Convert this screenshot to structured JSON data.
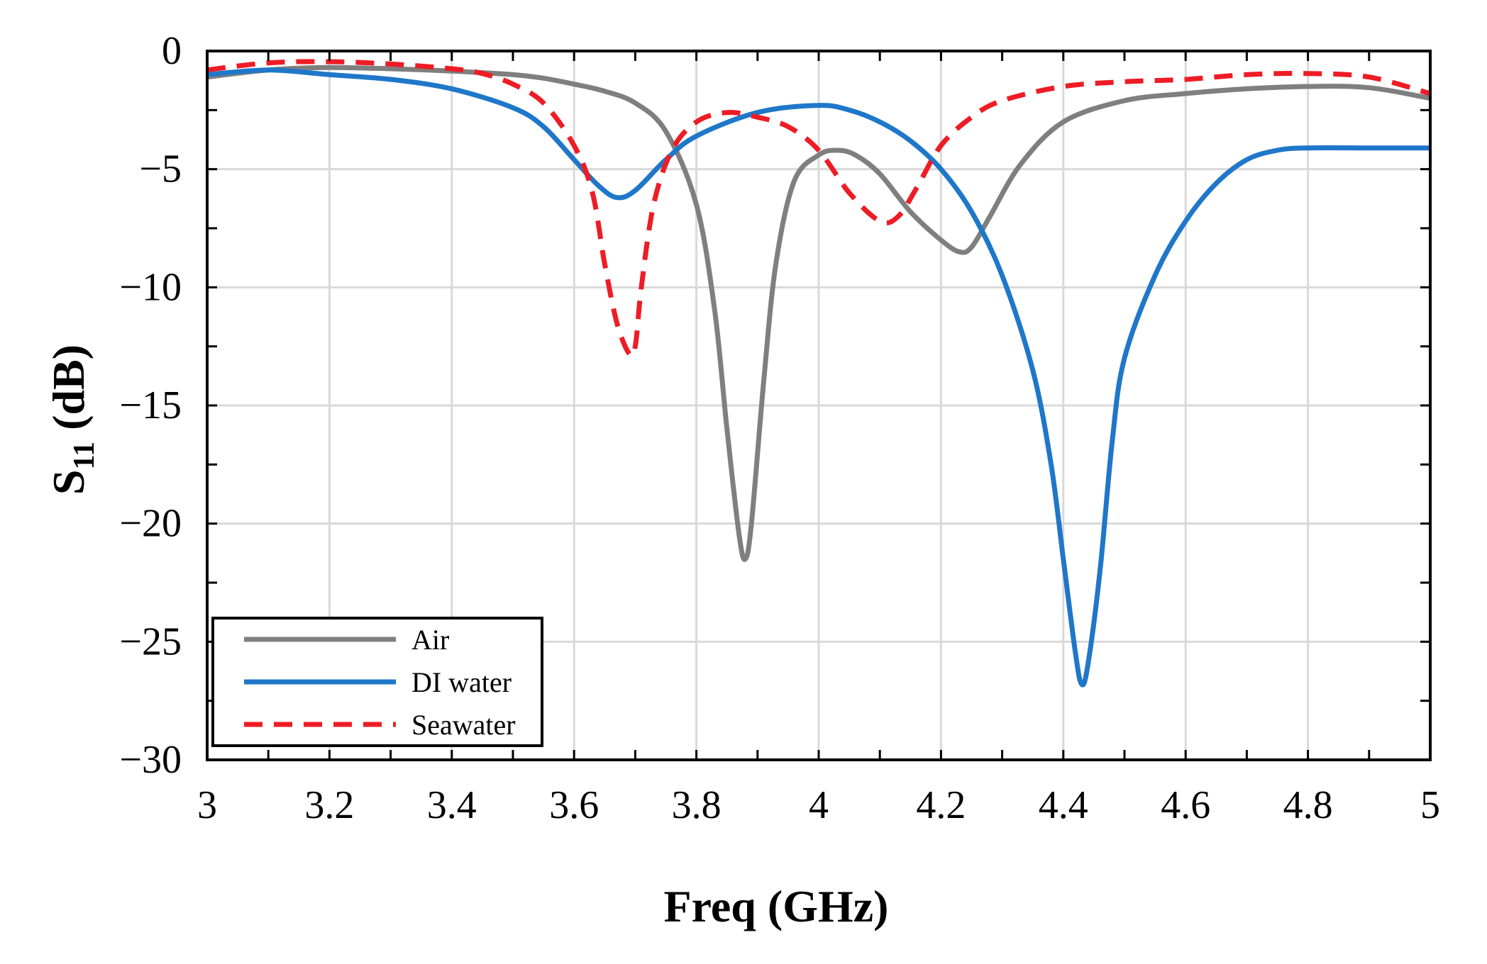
{
  "chart_data": {
    "type": "line",
    "title": "",
    "xlabel": "Freq (GHz)",
    "ylabel_main": "S",
    "ylabel_sub": "11",
    "ylabel_unit": "(dB)",
    "xlim": [
      3,
      5
    ],
    "ylim": [
      -30,
      0
    ],
    "grid": true,
    "legend_position": "bottom-left",
    "x_ticks": [
      3,
      3.2,
      3.4,
      3.6,
      3.8,
      4,
      4.2,
      4.4,
      4.6,
      4.8,
      5
    ],
    "x_tick_labels": [
      "3",
      "3.2",
      "3.4",
      "3.6",
      "3.8",
      "4",
      "4.2",
      "4.4",
      "4.6",
      "4.8",
      "5"
    ],
    "y_ticks": [
      0,
      -5,
      -10,
      -15,
      -20,
      -25,
      -30
    ],
    "y_tick_labels": [
      "0",
      "−5",
      "−10",
      "−15",
      "−20",
      "−25",
      "−30"
    ],
    "series": [
      {
        "name": "Air",
        "color": "#7f7f7f",
        "dash": "solid",
        "x": [
          3.0,
          3.1,
          3.2,
          3.3,
          3.4,
          3.5,
          3.55,
          3.6,
          3.65,
          3.7,
          3.75,
          3.8,
          3.83,
          3.85,
          3.87,
          3.88,
          3.89,
          3.91,
          3.93,
          3.96,
          4.0,
          4.03,
          4.06,
          4.1,
          4.15,
          4.2,
          4.23,
          4.25,
          4.28,
          4.33,
          4.4,
          4.5,
          4.6,
          4.7,
          4.8,
          4.9,
          5.0
        ],
        "y": [
          -1.1,
          -0.8,
          -0.7,
          -0.75,
          -0.85,
          -1.0,
          -1.15,
          -1.4,
          -1.7,
          -2.2,
          -3.4,
          -6.5,
          -11.0,
          -16.0,
          -20.5,
          -21.5,
          -20.0,
          -14.0,
          -9.0,
          -5.5,
          -4.4,
          -4.2,
          -4.4,
          -5.2,
          -6.8,
          -8.0,
          -8.5,
          -8.3,
          -7.0,
          -4.8,
          -3.0,
          -2.1,
          -1.8,
          -1.6,
          -1.5,
          -1.55,
          -2.0
        ]
      },
      {
        "name": "DI water",
        "color": "#1f77c9",
        "dash": "solid",
        "x": [
          3.0,
          3.1,
          3.2,
          3.3,
          3.4,
          3.5,
          3.55,
          3.6,
          3.64,
          3.67,
          3.7,
          3.75,
          3.8,
          3.9,
          4.0,
          4.05,
          4.1,
          4.15,
          4.2,
          4.25,
          4.3,
          4.35,
          4.38,
          4.4,
          4.42,
          4.43,
          4.44,
          4.46,
          4.48,
          4.5,
          4.55,
          4.6,
          4.65,
          4.7,
          4.75,
          4.8,
          4.9,
          5.0
        ],
        "y": [
          -1.0,
          -0.8,
          -1.0,
          -1.2,
          -1.6,
          -2.4,
          -3.2,
          -4.6,
          -5.7,
          -6.2,
          -5.9,
          -4.6,
          -3.6,
          -2.6,
          -2.3,
          -2.5,
          -3.0,
          -3.8,
          -5.0,
          -6.8,
          -9.5,
          -13.5,
          -17.5,
          -21.5,
          -25.5,
          -26.8,
          -26.0,
          -22.0,
          -16.5,
          -13.0,
          -9.5,
          -7.2,
          -5.6,
          -4.6,
          -4.2,
          -4.1,
          -4.1,
          -4.1
        ]
      },
      {
        "name": "Seawater",
        "color": "#ee1c25",
        "dash": "dashed",
        "x": [
          3.0,
          3.1,
          3.2,
          3.3,
          3.4,
          3.45,
          3.5,
          3.55,
          3.6,
          3.63,
          3.65,
          3.67,
          3.69,
          3.7,
          3.71,
          3.73,
          3.76,
          3.8,
          3.85,
          3.9,
          3.95,
          4.0,
          4.05,
          4.1,
          4.13,
          4.16,
          4.2,
          4.25,
          4.3,
          4.4,
          4.5,
          4.6,
          4.7,
          4.8,
          4.9,
          5.0
        ],
        "y": [
          -0.8,
          -0.5,
          -0.45,
          -0.55,
          -0.75,
          -0.95,
          -1.4,
          -2.2,
          -4.0,
          -6.0,
          -9.0,
          -11.5,
          -12.8,
          -12.5,
          -10.0,
          -6.5,
          -4.2,
          -3.0,
          -2.6,
          -2.8,
          -3.2,
          -4.2,
          -6.0,
          -7.2,
          -7.0,
          -5.8,
          -4.0,
          -2.8,
          -2.1,
          -1.5,
          -1.3,
          -1.2,
          -1.0,
          -0.95,
          -1.1,
          -1.8
        ]
      }
    ]
  }
}
